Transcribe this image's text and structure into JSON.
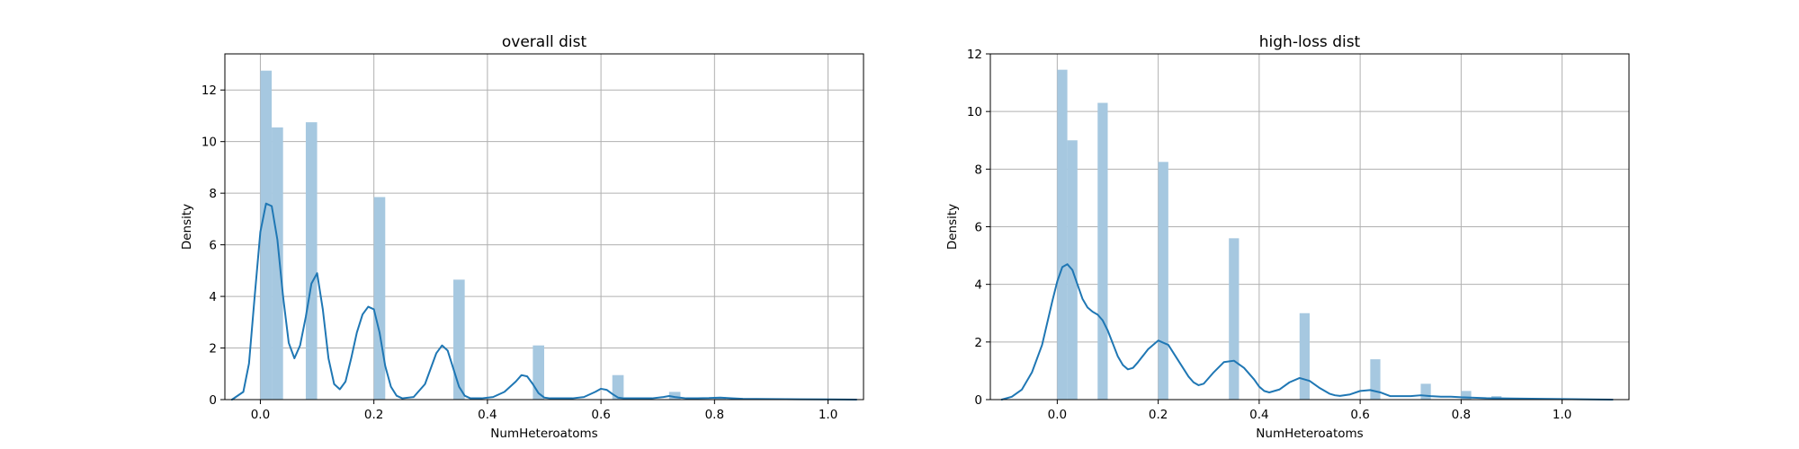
{
  "chart_data": [
    {
      "type": "bar",
      "title": "overall dist",
      "xlabel": "NumHeteroatoms",
      "ylabel": "Density",
      "xlim": [
        -0.0625,
        1.0625
      ],
      "ylim": [
        0,
        13.4
      ],
      "xticks": [
        0.0,
        0.2,
        0.4,
        0.6,
        0.8,
        1.0
      ],
      "xtick_labels": [
        "0.0",
        "0.2",
        "0.4",
        "0.6",
        "0.8",
        "1.0"
      ],
      "yticks": [
        0,
        2,
        4,
        6,
        8,
        10,
        12
      ],
      "ytick_labels": [
        "0",
        "2",
        "4",
        "6",
        "8",
        "10",
        "12"
      ],
      "grid": true,
      "bar_color": "#a6c8e0",
      "line_color": "#1f77b4",
      "histogram": {
        "bins": [
          {
            "x0": 0.0,
            "x1": 0.02,
            "density": 12.75
          },
          {
            "x0": 0.02,
            "x1": 0.04,
            "density": 10.55
          },
          {
            "x0": 0.08,
            "x1": 0.1,
            "density": 10.75
          },
          {
            "x0": 0.2,
            "x1": 0.22,
            "density": 7.85
          },
          {
            "x0": 0.34,
            "x1": 0.36,
            "density": 4.65
          },
          {
            "x0": 0.48,
            "x1": 0.5,
            "density": 2.1
          },
          {
            "x0": 0.62,
            "x1": 0.64,
            "density": 0.95
          },
          {
            "x0": 0.72,
            "x1": 0.74,
            "density": 0.3
          },
          {
            "x0": 0.8,
            "x1": 0.82,
            "density": 0.1
          }
        ]
      },
      "kde": {
        "x": [
          -0.05,
          -0.03,
          -0.02,
          -0.01,
          0.0,
          0.01,
          0.02,
          0.03,
          0.04,
          0.05,
          0.06,
          0.07,
          0.08,
          0.09,
          0.1,
          0.11,
          0.12,
          0.13,
          0.14,
          0.15,
          0.16,
          0.17,
          0.18,
          0.19,
          0.2,
          0.21,
          0.22,
          0.23,
          0.24,
          0.25,
          0.27,
          0.29,
          0.3,
          0.31,
          0.32,
          0.33,
          0.34,
          0.35,
          0.36,
          0.37,
          0.38,
          0.39,
          0.41,
          0.43,
          0.45,
          0.46,
          0.47,
          0.48,
          0.49,
          0.5,
          0.51,
          0.52,
          0.53,
          0.55,
          0.57,
          0.59,
          0.6,
          0.61,
          0.62,
          0.63,
          0.64,
          0.65,
          0.67,
          0.69,
          0.71,
          0.72,
          0.73,
          0.75,
          0.77,
          0.79,
          0.81,
          0.83,
          0.85,
          0.9,
          1.0,
          1.05
        ],
        "y": [
          0.0,
          0.3,
          1.4,
          4.0,
          6.5,
          7.6,
          7.5,
          6.2,
          4.0,
          2.2,
          1.6,
          2.1,
          3.2,
          4.5,
          4.9,
          3.5,
          1.6,
          0.6,
          0.4,
          0.7,
          1.6,
          2.6,
          3.3,
          3.6,
          3.5,
          2.6,
          1.3,
          0.5,
          0.15,
          0.05,
          0.1,
          0.6,
          1.2,
          1.8,
          2.1,
          1.9,
          1.2,
          0.5,
          0.15,
          0.05,
          0.05,
          0.05,
          0.1,
          0.3,
          0.7,
          0.95,
          0.9,
          0.6,
          0.25,
          0.08,
          0.05,
          0.05,
          0.05,
          0.05,
          0.1,
          0.3,
          0.42,
          0.38,
          0.22,
          0.08,
          0.05,
          0.05,
          0.05,
          0.05,
          0.1,
          0.14,
          0.1,
          0.05,
          0.05,
          0.06,
          0.08,
          0.05,
          0.03,
          0.02,
          0.01,
          0.0
        ]
      }
    },
    {
      "type": "bar",
      "title": "high-loss dist",
      "xlabel": "NumHeteroatoms",
      "ylabel": "Density",
      "xlim": [
        -0.1325,
        1.1325
      ],
      "ylim": [
        0,
        12.0
      ],
      "xticks": [
        0.0,
        0.2,
        0.4,
        0.6,
        0.8,
        1.0
      ],
      "xtick_labels": [
        "0.0",
        "0.2",
        "0.4",
        "0.6",
        "0.8",
        "1.0"
      ],
      "yticks": [
        0,
        2,
        4,
        6,
        8,
        10,
        12
      ],
      "ytick_labels": [
        "0",
        "2",
        "4",
        "6",
        "8",
        "10",
        "12"
      ],
      "grid": true,
      "bar_color": "#a6c8e0",
      "line_color": "#1f77b4",
      "histogram": {
        "bins": [
          {
            "x0": 0.0,
            "x1": 0.02,
            "density": 11.45
          },
          {
            "x0": 0.02,
            "x1": 0.04,
            "density": 9.0
          },
          {
            "x0": 0.08,
            "x1": 0.1,
            "density": 10.3
          },
          {
            "x0": 0.2,
            "x1": 0.22,
            "density": 8.25
          },
          {
            "x0": 0.34,
            "x1": 0.36,
            "density": 5.6
          },
          {
            "x0": 0.48,
            "x1": 0.5,
            "density": 3.0
          },
          {
            "x0": 0.62,
            "x1": 0.64,
            "density": 1.4
          },
          {
            "x0": 0.72,
            "x1": 0.74,
            "density": 0.55
          },
          {
            "x0": 0.8,
            "x1": 0.82,
            "density": 0.3
          },
          {
            "x0": 0.86,
            "x1": 0.88,
            "density": 0.12
          }
        ]
      },
      "kde": {
        "x": [
          -0.11,
          -0.09,
          -0.07,
          -0.05,
          -0.03,
          -0.01,
          0.0,
          0.01,
          0.02,
          0.03,
          0.04,
          0.05,
          0.06,
          0.07,
          0.08,
          0.09,
          0.1,
          0.11,
          0.12,
          0.13,
          0.14,
          0.15,
          0.16,
          0.18,
          0.2,
          0.22,
          0.24,
          0.26,
          0.27,
          0.28,
          0.29,
          0.31,
          0.33,
          0.35,
          0.37,
          0.39,
          0.4,
          0.41,
          0.42,
          0.44,
          0.46,
          0.48,
          0.5,
          0.52,
          0.54,
          0.55,
          0.56,
          0.58,
          0.6,
          0.62,
          0.64,
          0.66,
          0.68,
          0.7,
          0.72,
          0.74,
          0.76,
          0.78,
          0.8,
          0.85,
          0.9,
          1.0,
          1.1
        ],
        "y": [
          0.0,
          0.1,
          0.35,
          0.95,
          1.9,
          3.4,
          4.1,
          4.6,
          4.7,
          4.5,
          4.0,
          3.5,
          3.2,
          3.05,
          2.95,
          2.75,
          2.4,
          1.95,
          1.5,
          1.2,
          1.05,
          1.1,
          1.3,
          1.75,
          2.05,
          1.9,
          1.35,
          0.8,
          0.6,
          0.5,
          0.55,
          0.95,
          1.3,
          1.35,
          1.1,
          0.7,
          0.45,
          0.3,
          0.25,
          0.35,
          0.6,
          0.75,
          0.65,
          0.4,
          0.2,
          0.15,
          0.13,
          0.18,
          0.3,
          0.33,
          0.25,
          0.12,
          0.12,
          0.12,
          0.15,
          0.12,
          0.1,
          0.1,
          0.08,
          0.05,
          0.04,
          0.02,
          0.0
        ]
      }
    }
  ]
}
